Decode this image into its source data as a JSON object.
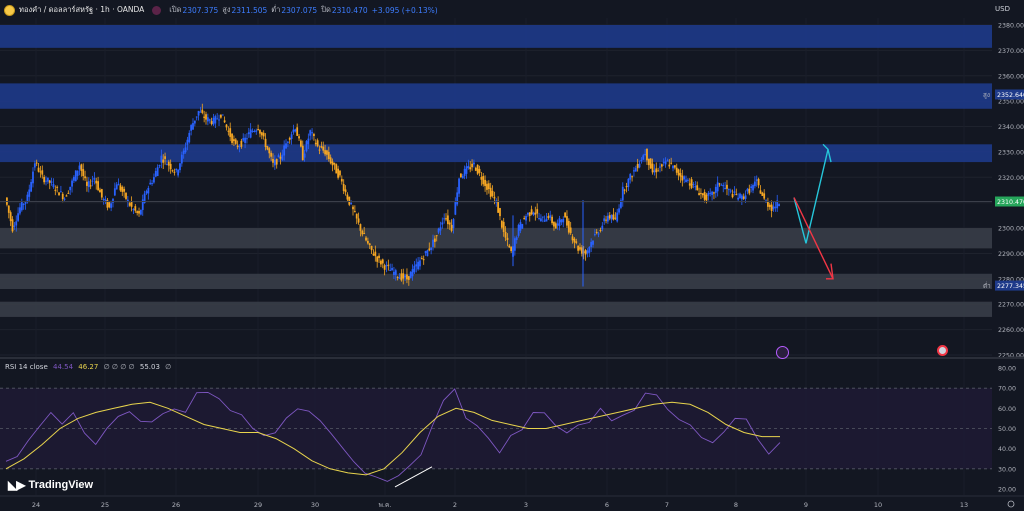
{
  "header": {
    "symbol": "ทองคำ / ดอลลาร์สหรัฐ · 1h · OANDA",
    "open_label": "เปิด",
    "open": "2307.375",
    "high_label": "สูง",
    "high": "2311.505",
    "low_label": "ต่ำ",
    "low": "2307.075",
    "close_label": "ปิด",
    "close": "2310.470",
    "change": "+3.095 (+0.13%)",
    "currency": "USD"
  },
  "price_axis": {
    "ticks": [
      "2380.000",
      "2370.000",
      "2360.000",
      "2350.000",
      "2340.000",
      "2330.000",
      "2320.000",
      "2310.000",
      "2300.000",
      "2290.000",
      "2280.000",
      "2270.000",
      "2260.000",
      "2250.000"
    ],
    "high_marker_label": "สูง",
    "high_marker_value": "2352.640",
    "last_price_value": "2310.470",
    "low_marker_label": "ต่ำ",
    "low_marker_value": "2277.345"
  },
  "rsi": {
    "title": "RSI 14 close",
    "value1": "44.54",
    "value2": "46.27",
    "flags": "∅ ∅ ∅ ∅",
    "value3": "55.03",
    "flag2": "∅",
    "ticks": [
      "80.00",
      "70.00",
      "60.00",
      "50.00",
      "40.00",
      "30.00",
      "20.00"
    ]
  },
  "time_axis": {
    "labels": [
      "24",
      "25",
      "26",
      "29",
      "30",
      "พ.ค.",
      "2",
      "3",
      "6",
      "7",
      "8",
      "9",
      "10",
      "13"
    ]
  },
  "branding": {
    "name": "TradingView"
  },
  "colors": {
    "bg": "#131722",
    "bull": "#2962ff",
    "bear": "#f5a623",
    "resistance_zone": "#1e3a8a",
    "support_zone": "#3b3f4a",
    "rsi_line": "#7e57c2",
    "rsi_ma": "#e8d44d",
    "arrow_up": "#26c6da",
    "arrow_down": "#f23645"
  },
  "chart_data": {
    "type": "candlestick",
    "zones": [
      {
        "kind": "resistance",
        "from": 2371,
        "to": 2380
      },
      {
        "kind": "resistance",
        "from": 2347,
        "to": 2357
      },
      {
        "kind": "resistance",
        "from": 2326,
        "to": 2333
      },
      {
        "kind": "support",
        "from": 2292,
        "to": 2300
      },
      {
        "kind": "support",
        "from": 2276,
        "to": 2282
      },
      {
        "kind": "support",
        "from": 2265,
        "to": 2271
      }
    ],
    "price_path": [
      2312,
      2300,
      2308,
      2312,
      2326,
      2320,
      2318,
      2315,
      2312,
      2318,
      2325,
      2316,
      2320,
      2312,
      2308,
      2318,
      2313,
      2308,
      2305,
      2315,
      2320,
      2328,
      2325,
      2322,
      2330,
      2340,
      2346,
      2343,
      2342,
      2345,
      2338,
      2332,
      2334,
      2338,
      2340,
      2333,
      2325,
      2328,
      2335,
      2340,
      2328,
      2338,
      2332,
      2330,
      2325,
      2320,
      2312,
      2305,
      2298,
      2292,
      2288,
      2285,
      2283,
      2281,
      2280,
      2284,
      2288,
      2292,
      2297,
      2305,
      2300,
      2320,
      2323,
      2325,
      2320,
      2315,
      2310,
      2298,
      2290,
      2300,
      2305,
      2307,
      2303,
      2305,
      2300,
      2305,
      2298,
      2292,
      2290,
      2296,
      2300,
      2305,
      2303,
      2315,
      2320,
      2325,
      2330,
      2322,
      2324,
      2326,
      2323,
      2320,
      2318,
      2315,
      2312,
      2313,
      2318,
      2315,
      2313,
      2312,
      2315,
      2318,
      2311,
      2308,
      2310
    ],
    "scenario_arrows": [
      {
        "from": 2312,
        "to": 2294,
        "then": 2330,
        "direction": "up"
      },
      {
        "from": 2312,
        "to": 2280,
        "direction": "down"
      }
    ],
    "rsi_path": [
      34,
      38,
      42,
      50,
      60,
      55,
      58,
      48,
      45,
      52,
      56,
      60,
      55,
      52,
      60,
      62,
      58,
      65,
      70,
      66,
      60,
      55,
      50,
      46,
      48,
      55,
      62,
      58,
      52,
      48,
      40,
      32,
      26,
      24,
      22,
      25,
      30,
      38,
      50,
      62,
      68,
      58,
      52,
      45,
      40,
      44,
      52,
      58,
      56,
      50,
      48,
      52,
      56,
      60,
      55,
      58,
      62,
      66,
      64,
      60,
      56,
      52,
      48,
      45,
      50,
      55,
      52,
      44,
      40,
      46
    ],
    "rsi_ma_path": [
      30,
      35,
      42,
      50,
      55,
      58,
      60,
      62,
      63,
      60,
      56,
      52,
      50,
      48,
      48,
      45,
      40,
      34,
      30,
      28,
      27,
      30,
      38,
      48,
      56,
      60,
      58,
      54,
      52,
      50,
      50,
      52,
      54,
      56,
      58,
      60,
      62,
      63,
      62,
      58,
      52,
      48,
      46,
      46
    ],
    "rsi_levels": [
      70,
      50,
      30
    ],
    "rsi_ylim": [
      20,
      80
    ],
    "ylim": [
      2250,
      2383
    ],
    "x_labels": [
      "24",
      "25",
      "26",
      "29",
      "30",
      "พ.ค.",
      "2",
      "3",
      "6",
      "7",
      "8",
      "9",
      "10",
      "13"
    ]
  }
}
